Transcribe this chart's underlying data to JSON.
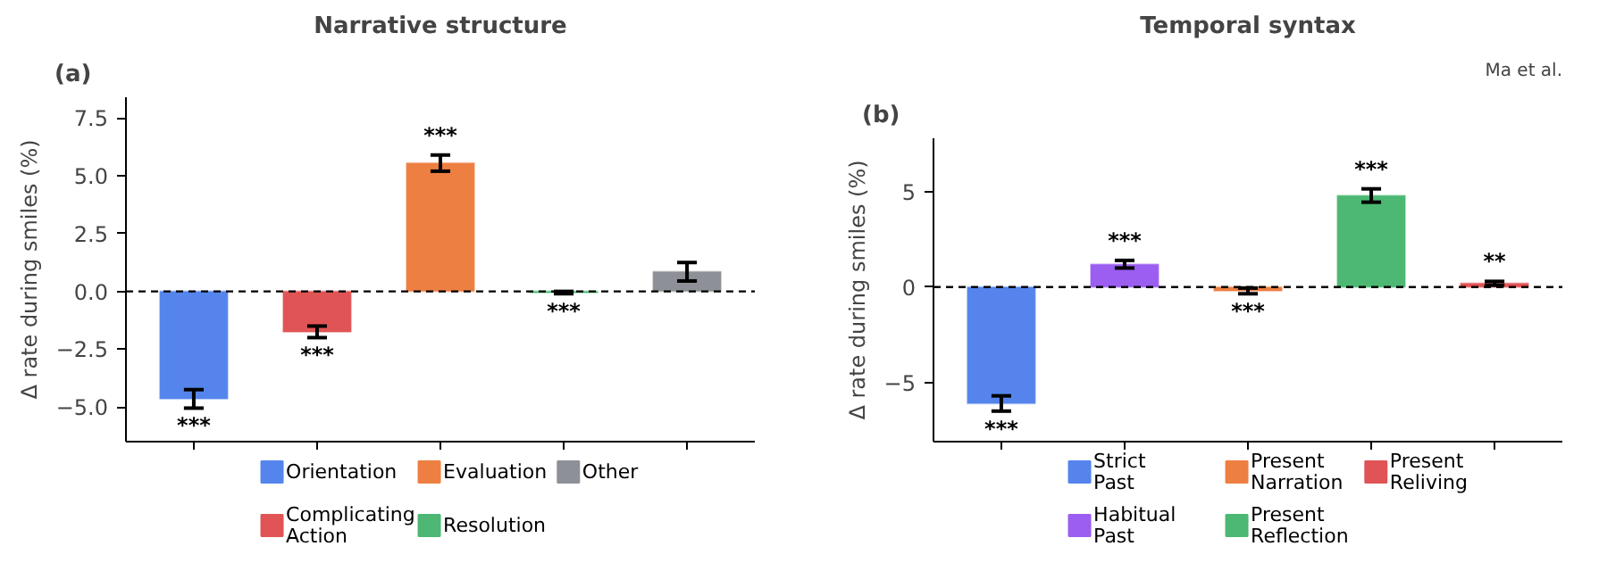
{
  "chart_data": [
    {
      "type": "bar",
      "title": "Narrative structure",
      "ylabel": "Δ rate during smiles (%)",
      "annotations": [
        "(a)"
      ],
      "categories": [
        null,
        null,
        null,
        null,
        null
      ],
      "series": [
        {
          "name": "Orientation",
          "color": "#5585ec",
          "values": [
            -4.65,
            null,
            null,
            null,
            null
          ],
          "errors": [
            0.4,
            null,
            null,
            null,
            null
          ],
          "value_labels": [
            "***",
            null,
            null,
            null,
            null
          ]
        },
        {
          "name": "Complicating Action",
          "color": "#e05456",
          "values": [
            null,
            -1.75,
            null,
            null,
            null
          ],
          "errors": [
            null,
            0.25,
            null,
            null,
            null
          ],
          "value_labels": [
            null,
            "***",
            null,
            null,
            null
          ]
        },
        {
          "name": "Evaluation",
          "color": "#ee7f42",
          "values": [
            null,
            null,
            5.55,
            null,
            null
          ],
          "errors": [
            null,
            null,
            0.35,
            null,
            null
          ],
          "value_labels": [
            null,
            null,
            "***",
            null,
            null
          ]
        },
        {
          "name": "Resolution",
          "color": "#4cb873",
          "values": [
            null,
            null,
            null,
            -0.05,
            null
          ],
          "errors": [
            null,
            null,
            null,
            0.05,
            null
          ],
          "value_labels": [
            null,
            null,
            null,
            "***",
            null
          ]
        },
        {
          "name": "Other",
          "color": "#8d9096",
          "values": [
            null,
            null,
            null,
            null,
            0.85
          ],
          "errors": [
            null,
            null,
            null,
            null,
            0.4
          ],
          "value_labels": [
            null,
            null,
            null,
            null,
            null
          ]
        }
      ],
      "ylim": [
        -6.5,
        8.4
      ],
      "yticks": [
        {
          "value": -5.0,
          "label": "−5.0"
        },
        {
          "value": -2.5,
          "label": "−2.5"
        },
        {
          "value": 0.0,
          "label": "0.0"
        },
        {
          "value": 2.5,
          "label": "2.5"
        },
        {
          "value": 5.0,
          "label": "5.0"
        },
        {
          "value": 7.5,
          "label": "7.5"
        }
      ],
      "ref_lines": [
        {
          "axis": "y",
          "value": 0,
          "label": null,
          "color": "#000000",
          "line_style": "dashed"
        }
      ],
      "grid": false,
      "legend": "bottom",
      "tick_labels": "y"
    },
    {
      "type": "bar",
      "title": "Temporal syntax",
      "ylabel": "Δ rate during smiles (%)",
      "annotations": [
        "(b)",
        "Ma et al."
      ],
      "categories": [
        null,
        null,
        null,
        null,
        null
      ],
      "series": [
        {
          "name": "Strict Past",
          "color": "#5585ec",
          "values": [
            -6.1,
            null,
            null,
            null,
            null
          ],
          "errors": [
            0.4,
            null,
            null,
            null,
            null
          ],
          "value_labels": [
            "***",
            null,
            null,
            null,
            null
          ]
        },
        {
          "name": "Habitual Past",
          "color": "#9b5ef0",
          "values": [
            null,
            1.2,
            null,
            null,
            null
          ],
          "errors": [
            null,
            0.2,
            null,
            null,
            null
          ],
          "value_labels": [
            null,
            "***",
            null,
            null,
            null
          ]
        },
        {
          "name": "Present Narration",
          "color": "#ee7f42",
          "values": [
            null,
            null,
            -0.2,
            null,
            null
          ],
          "errors": [
            null,
            null,
            0.15,
            null,
            null
          ],
          "value_labels": [
            null,
            null,
            "***",
            null,
            null
          ]
        },
        {
          "name": "Present Reflection",
          "color": "#4cb873",
          "values": [
            null,
            null,
            null,
            4.8,
            null
          ],
          "errors": [
            null,
            null,
            null,
            0.35,
            null
          ],
          "value_labels": [
            null,
            null,
            null,
            "***",
            null
          ]
        },
        {
          "name": "Present Reliving",
          "color": "#e05456",
          "values": [
            null,
            null,
            null,
            null,
            0.2
          ],
          "errors": [
            null,
            null,
            null,
            null,
            0.1
          ],
          "value_labels": [
            null,
            null,
            null,
            null,
            "**"
          ]
        }
      ],
      "ylim": [
        -8.1,
        7.8
      ],
      "yticks": [
        {
          "value": -5,
          "label": "−5"
        },
        0,
        5
      ],
      "ref_lines": [
        {
          "axis": "y",
          "value": 0,
          "label": null,
          "color": "#000000",
          "line_style": "dashed"
        }
      ],
      "grid": false,
      "legend": "bottom",
      "tick_labels": "y"
    }
  ]
}
